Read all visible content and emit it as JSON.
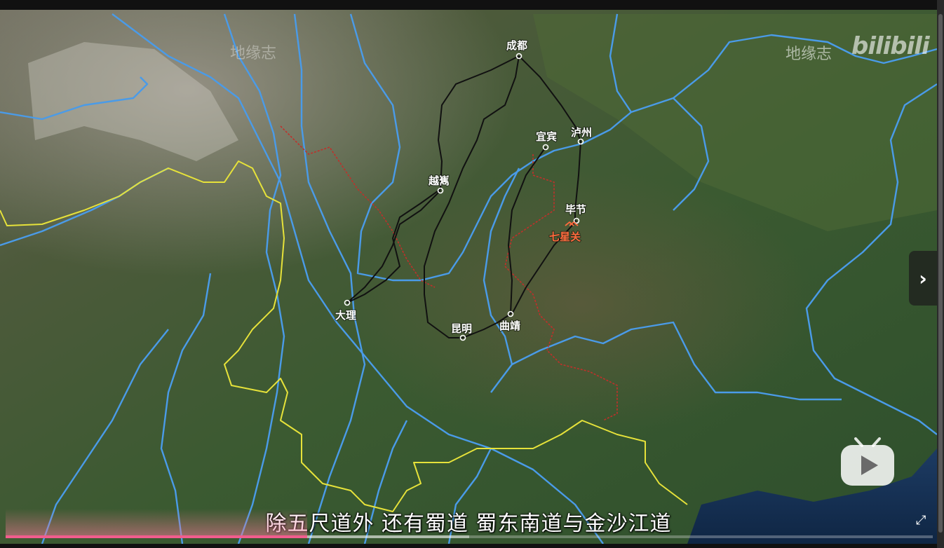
{
  "watermarks": {
    "left": "地缘志",
    "right_text": "地缘志",
    "right_logo": "bilibili"
  },
  "cities": [
    {
      "name": "成都"
    },
    {
      "name": "宜宾"
    },
    {
      "name": "泸州"
    },
    {
      "name": "越嶲"
    },
    {
      "name": "毕节"
    },
    {
      "name": "大理"
    },
    {
      "name": "昆明"
    },
    {
      "name": "曲靖"
    }
  ],
  "pass": {
    "name": "七星关"
  },
  "subtitle": "除五尺道外  还有蜀道  蜀东南道与金沙江道",
  "player": {
    "progress": 0.325,
    "buffered": 0.5,
    "next_icon": "chevron-right-icon",
    "fullscreen_icon": "fullscreen-icon",
    "logo_icon": "bilibili-tv-icon"
  },
  "colors": {
    "river": "#4a9be8",
    "border_national": "#e6e23a",
    "border_province": "#c0302a",
    "route": "#111111",
    "progress": "#f25d8e"
  }
}
